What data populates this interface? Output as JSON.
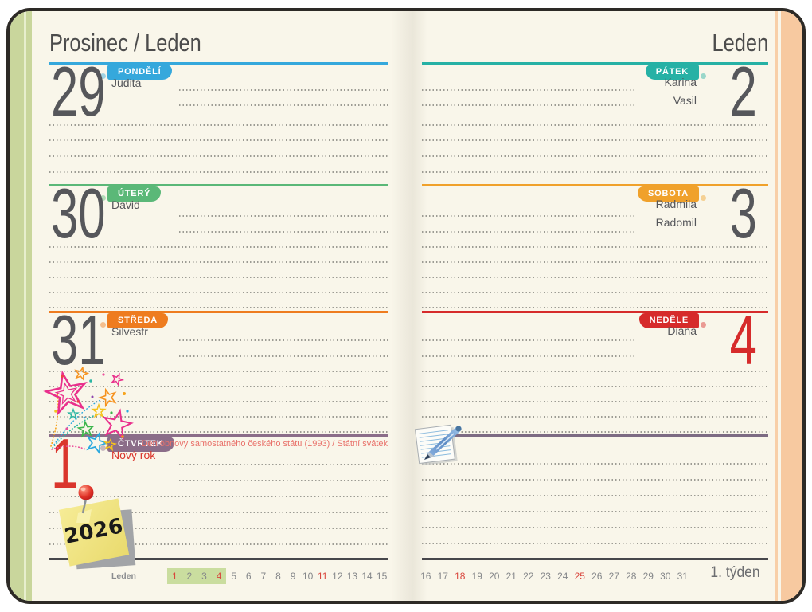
{
  "left_page": {
    "title": "Prosinec / Leden",
    "days": [
      {
        "number": "29",
        "label": "PONDĚLÍ",
        "names": [
          "Judita"
        ],
        "color": "#35a8dc"
      },
      {
        "number": "30",
        "label": "ÚTERÝ",
        "names": [
          "David"
        ],
        "color": "#5bb878"
      },
      {
        "number": "31",
        "label": "STŘEDA",
        "names": [
          "Silvestr"
        ],
        "color": "#ee7c1f"
      },
      {
        "number": "1",
        "label": "ČTVRTEK",
        "names": [
          "Nový rok"
        ],
        "color": "#8b6d89",
        "number_color": "#da352c",
        "name_color": "#da352c",
        "holiday_note": "Den obnovy samostatného českého státu (1993) / Státní svátek"
      }
    ],
    "footer": {
      "month_label": "Leden",
      "days": [
        1,
        2,
        3,
        4,
        5,
        6,
        7,
        8,
        9,
        10,
        11,
        12,
        13,
        14,
        15
      ],
      "red_days": [
        1,
        4,
        11
      ],
      "highlight_days": [
        1,
        2,
        3,
        4
      ],
      "highlight_color": "#cadd9f",
      "red_color": "#d9453c"
    }
  },
  "right_page": {
    "title": "Leden",
    "days": [
      {
        "number": "2",
        "label": "PÁTEK",
        "names": [
          "Karina",
          "Vasil"
        ],
        "color": "#26b1a5"
      },
      {
        "number": "3",
        "label": "SOBOTA",
        "names": [
          "Radmila",
          "Radomil"
        ],
        "color": "#f0a12b"
      },
      {
        "number": "4",
        "label": "NEDĚLE",
        "names": [
          "Diana"
        ],
        "color": "#d62b2b",
        "number_color": "#d62b2b"
      }
    ],
    "extra_row_color": "#7d6b83",
    "footer": {
      "days": [
        16,
        17,
        18,
        19,
        20,
        21,
        22,
        23,
        24,
        25,
        26,
        27,
        28,
        29,
        30,
        31
      ],
      "red_days": [
        18,
        25
      ],
      "red_color": "#d9453c",
      "week_label": "1. týden"
    }
  },
  "stickers": {
    "sticky_note_year": "2026"
  }
}
